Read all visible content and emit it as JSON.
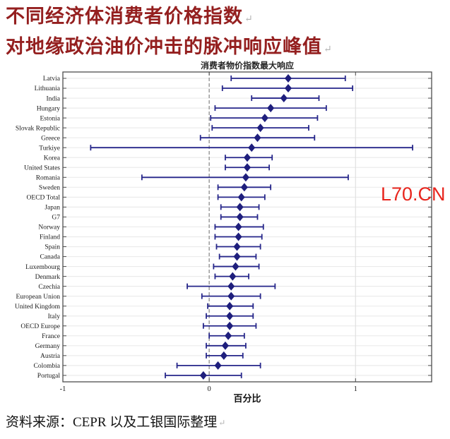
{
  "header": {
    "line1": "不同经济体消费者价格指数",
    "line2": "对地缘政治油价冲击的脉冲响应峰值",
    "return_mark": "↵"
  },
  "watermark": {
    "text": "L70.CN",
    "color": "#e8251d"
  },
  "source": {
    "text": "资料来源：CEPR 以及工银国际整理"
  },
  "chart_data": {
    "type": "scatter",
    "subtype": "horizontal-error-bar-dot-plot",
    "title": "消费者物价指数最大响应",
    "xlabel": "百分比",
    "ylabel": "",
    "xlim": [
      -1,
      1.52
    ],
    "xticks": [
      -1,
      0,
      1
    ],
    "zero_line": {
      "x": 0,
      "style": "dashed"
    },
    "grid": {
      "horizontal": true,
      "vertical_at": [
        1
      ]
    },
    "legend": null,
    "marker": "diamond",
    "colors": {
      "marker": "#1f1f7d",
      "bar": "#26268a",
      "grid": "#ebebeb",
      "grid_vertical": "#e0e0e0",
      "axis": "#4d4d4d",
      "zero_line": "#8c8c8c",
      "text": "#1a1a1a"
    },
    "points": [
      {
        "label": "Latvia",
        "value": 0.54,
        "low": 0.15,
        "high": 0.93
      },
      {
        "label": "Lithuania",
        "value": 0.54,
        "low": 0.09,
        "high": 0.98
      },
      {
        "label": "India",
        "value": 0.51,
        "low": 0.29,
        "high": 0.75
      },
      {
        "label": "Hungary",
        "value": 0.42,
        "low": 0.04,
        "high": 0.8
      },
      {
        "label": "Estonia",
        "value": 0.38,
        "low": 0.01,
        "high": 0.74
      },
      {
        "label": "Slovak Republic",
        "value": 0.35,
        "low": 0.02,
        "high": 0.68
      },
      {
        "label": "Greece",
        "value": 0.33,
        "low": -0.06,
        "high": 0.72
      },
      {
        "label": "Turkiye",
        "value": 0.29,
        "low": -0.81,
        "high": 1.39
      },
      {
        "label": "Korea",
        "value": 0.26,
        "low": 0.11,
        "high": 0.43
      },
      {
        "label": "United States",
        "value": 0.26,
        "low": 0.11,
        "high": 0.41
      },
      {
        "label": "Romania",
        "value": 0.25,
        "low": -0.46,
        "high": 0.95
      },
      {
        "label": "Sweden",
        "value": 0.24,
        "low": 0.06,
        "high": 0.42
      },
      {
        "label": "OECD Total",
        "value": 0.22,
        "low": 0.06,
        "high": 0.38
      },
      {
        "label": "Japan",
        "value": 0.21,
        "low": 0.08,
        "high": 0.34
      },
      {
        "label": "G7",
        "value": 0.21,
        "low": 0.08,
        "high": 0.33
      },
      {
        "label": "Norway",
        "value": 0.2,
        "low": 0.04,
        "high": 0.37
      },
      {
        "label": "Finland",
        "value": 0.2,
        "low": 0.04,
        "high": 0.36
      },
      {
        "label": "Spain",
        "value": 0.19,
        "low": 0.05,
        "high": 0.35
      },
      {
        "label": "Canada",
        "value": 0.19,
        "low": 0.07,
        "high": 0.32
      },
      {
        "label": "Luxembourg",
        "value": 0.18,
        "low": 0.03,
        "high": 0.34
      },
      {
        "label": "Denmark",
        "value": 0.16,
        "low": 0.04,
        "high": 0.27
      },
      {
        "label": "Czechia",
        "value": 0.15,
        "low": -0.15,
        "high": 0.45
      },
      {
        "label": "European Union",
        "value": 0.15,
        "low": -0.05,
        "high": 0.35
      },
      {
        "label": "United Kingdom",
        "value": 0.14,
        "low": -0.01,
        "high": 0.3
      },
      {
        "label": "Italy",
        "value": 0.14,
        "low": -0.02,
        "high": 0.3
      },
      {
        "label": "OECD Europe",
        "value": 0.14,
        "low": -0.04,
        "high": 0.32
      },
      {
        "label": "France",
        "value": 0.13,
        "low": 0.0,
        "high": 0.24
      },
      {
        "label": "Germany",
        "value": 0.11,
        "low": -0.02,
        "high": 0.25
      },
      {
        "label": "Austria",
        "value": 0.1,
        "low": -0.02,
        "high": 0.23
      },
      {
        "label": "Colombia",
        "value": 0.06,
        "low": -0.22,
        "high": 0.35
      },
      {
        "label": "Portugal",
        "value": -0.04,
        "low": -0.3,
        "high": 0.22
      }
    ]
  }
}
